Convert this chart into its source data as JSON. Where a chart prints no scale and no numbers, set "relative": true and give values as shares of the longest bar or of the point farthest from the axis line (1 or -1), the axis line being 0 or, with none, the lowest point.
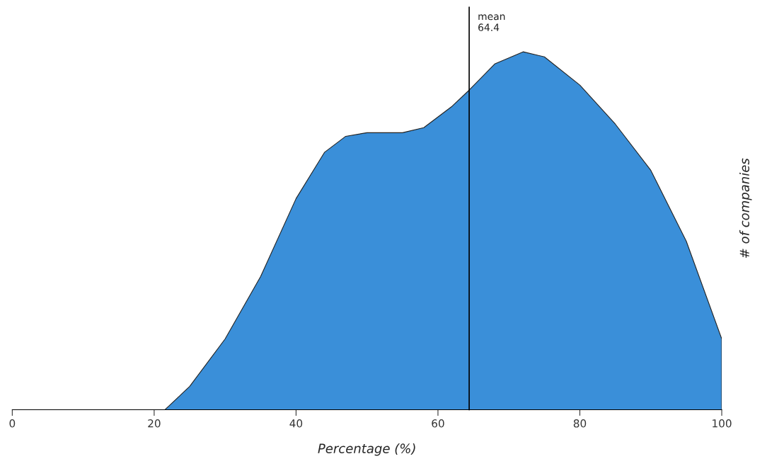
{
  "chart_data": {
    "type": "area",
    "relative": true,
    "xlabel": "Percentage (%)",
    "ylabel": "# of companies",
    "x": [
      21.5,
      25,
      30,
      35,
      40,
      44,
      47,
      50,
      55,
      58,
      62,
      64.4,
      68,
      72,
      75,
      80,
      85,
      90,
      95,
      100
    ],
    "series": [
      {
        "color": "#3a8fd9",
        "values": [
          0,
          0.065,
          0.198,
          0.372,
          0.59,
          0.719,
          0.764,
          0.774,
          0.774,
          0.788,
          0.848,
          0.893,
          0.966,
          1,
          0.986,
          0.907,
          0.798,
          0.669,
          0.471,
          0.198
        ]
      }
    ],
    "xlim": [
      0,
      100
    ],
    "xticks": [
      0,
      20,
      40,
      60,
      80,
      100
    ],
    "ref_lines": [
      {
        "axis": "x",
        "value": 64.4,
        "label": "mean\n64.4",
        "color": "#000000"
      }
    ],
    "grid": false,
    "legend": false
  }
}
